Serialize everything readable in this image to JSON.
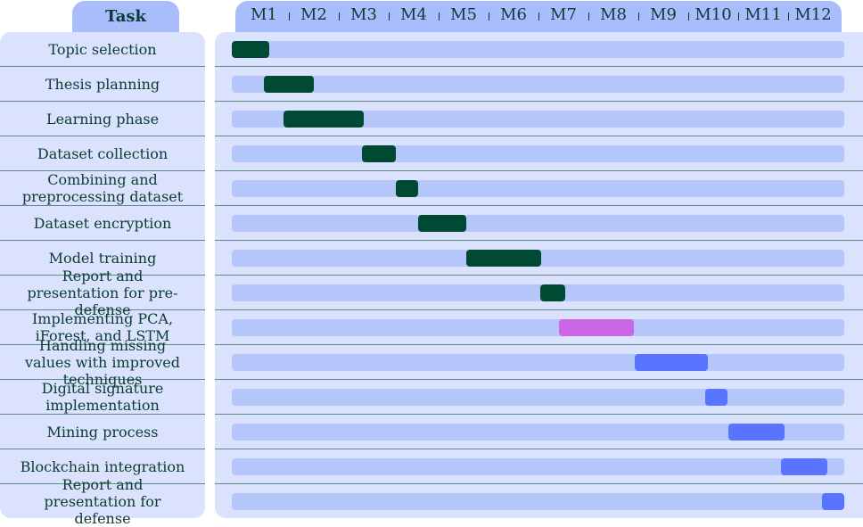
{
  "header": {
    "task_label": "Task"
  },
  "chart_data": {
    "type": "gantt",
    "months": [
      "M1",
      "M2",
      "M3",
      "M4",
      "M5",
      "M6",
      "M7",
      "M8",
      "M9",
      "M10",
      "M11",
      "M12"
    ],
    "colors": {
      "early": "#004a33",
      "pca": "#cc66e6",
      "later": "#5775ff"
    },
    "tasks": [
      {
        "label": "Topic selection",
        "start": 0.0,
        "end": 0.75,
        "color": "#004a33"
      },
      {
        "label": "Thesis planning",
        "start": 0.65,
        "end": 1.65,
        "color": "#004a33"
      },
      {
        "label": "Learning phase",
        "start": 1.03,
        "end": 2.65,
        "color": "#004a33"
      },
      {
        "label": "Dataset collection",
        "start": 2.6,
        "end": 3.28,
        "color": "#004a33"
      },
      {
        "label": "Combining and preprocessing dataset",
        "start": 3.28,
        "end": 3.74,
        "color": "#004a33"
      },
      {
        "label": "Dataset encryption",
        "start": 3.74,
        "end": 4.7,
        "color": "#004a33"
      },
      {
        "label": "Model training",
        "start": 4.7,
        "end": 6.2,
        "color": "#004a33"
      },
      {
        "label": "Report and presentation for pre-defense",
        "start": 6.18,
        "end": 6.68,
        "color": "#004a33"
      },
      {
        "label": "Implementing PCA, iForest, and LSTM",
        "start": 6.55,
        "end": 8.06,
        "color": "#cc66e6"
      },
      {
        "label": "Handling missing values with improved techniques",
        "start": 8.07,
        "end": 9.53,
        "color": "#5775ff"
      },
      {
        "label": "Digital signature implementation",
        "start": 9.48,
        "end": 9.93,
        "color": "#5775ff"
      },
      {
        "label": "Mining process",
        "start": 9.95,
        "end": 11.08,
        "color": "#5775ff"
      },
      {
        "label": "Blockchain integration",
        "start": 11.0,
        "end": 11.93,
        "color": "#5775ff"
      },
      {
        "label": "Report and presentation for defense",
        "start": 11.83,
        "end": 12.47,
        "color": "#5775ff"
      }
    ]
  }
}
